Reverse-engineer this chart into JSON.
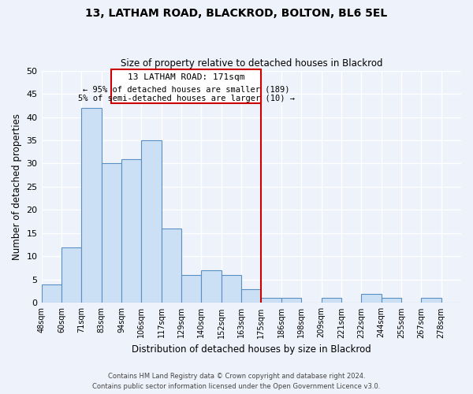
{
  "title": "13, LATHAM ROAD, BLACKROD, BOLTON, BL6 5EL",
  "subtitle": "Size of property relative to detached houses in Blackrod",
  "xlabel": "Distribution of detached houses by size in Blackrod",
  "ylabel": "Number of detached properties",
  "bin_labels": [
    "48sqm",
    "60sqm",
    "71sqm",
    "83sqm",
    "94sqm",
    "106sqm",
    "117sqm",
    "129sqm",
    "140sqm",
    "152sqm",
    "163sqm",
    "175sqm",
    "186sqm",
    "198sqm",
    "209sqm",
    "221sqm",
    "232sqm",
    "244sqm",
    "255sqm",
    "267sqm",
    "278sqm"
  ],
  "bar_heights": [
    4,
    12,
    42,
    30,
    31,
    35,
    16,
    6,
    7,
    6,
    3,
    1,
    1,
    0,
    1,
    0,
    2,
    1,
    0,
    1,
    0
  ],
  "bar_color": "#cce0f5",
  "bar_edge_color": "#5a8fc3",
  "vline_color": "#cc0000",
  "vline_bin": 11,
  "annotation_title": "13 LATHAM ROAD: 171sqm",
  "annotation_line1": "← 95% of detached houses are smaller (189)",
  "annotation_line2": "5% of semi-detached houses are larger (10) →",
  "ylim": [
    0,
    50
  ],
  "yticks": [
    0,
    5,
    10,
    15,
    20,
    25,
    30,
    35,
    40,
    45,
    50
  ],
  "footer1": "Contains HM Land Registry data © Crown copyright and database right 2024.",
  "footer2": "Contains public sector information licensed under the Open Government Licence v3.0.",
  "bg_color": "#eef2fa",
  "grid_color": "#ffffff"
}
